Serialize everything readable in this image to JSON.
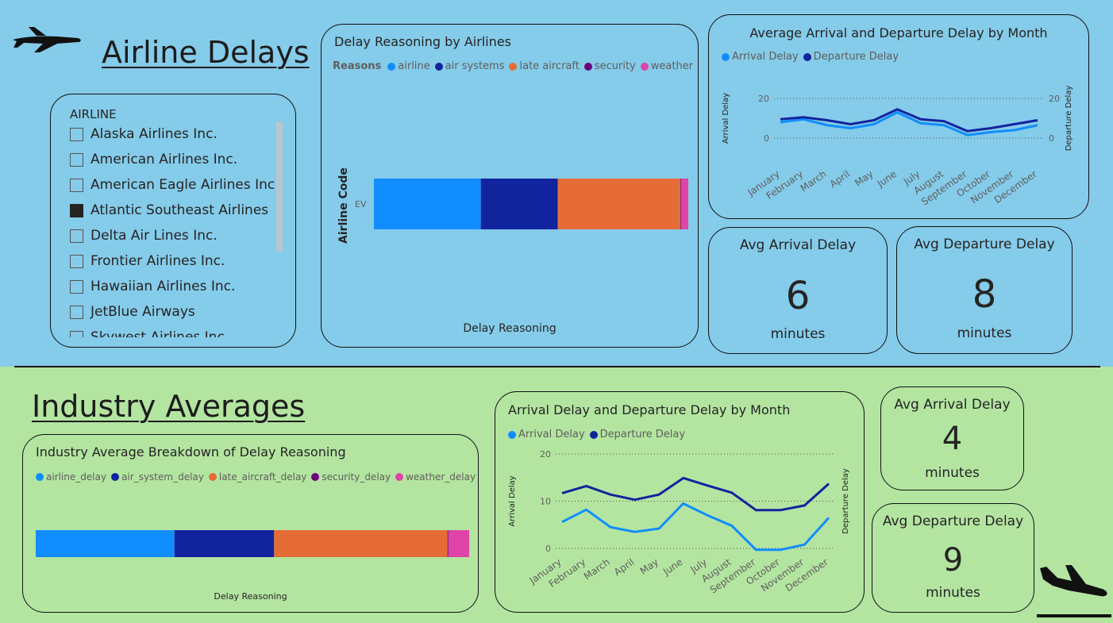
{
  "top_section": {
    "title": "Airline Delays",
    "slicer": {
      "header": "AIRLINE",
      "items": [
        {
          "label": "Alaska Airlines Inc.",
          "checked": false
        },
        {
          "label": "American Airlines Inc.",
          "checked": false
        },
        {
          "label": "American Eagle Airlines Inc.",
          "checked": false
        },
        {
          "label": "Atlantic Southeast Airlines",
          "checked": true
        },
        {
          "label": "Delta Air Lines Inc.",
          "checked": false
        },
        {
          "label": "Frontier Airlines Inc.",
          "checked": false
        },
        {
          "label": "Hawaiian Airlines Inc.",
          "checked": false
        },
        {
          "label": "JetBlue Airways",
          "checked": false
        },
        {
          "label": "Skywest Airlines Inc.",
          "checked": false
        }
      ]
    },
    "reason_chart": {
      "title": "Delay Reasoning by Airlines",
      "legend_title": "Reasons",
      "legend": [
        {
          "name": "airline",
          "color": "#118dff"
        },
        {
          "name": "air systems",
          "color": "#12239e"
        },
        {
          "name": "late aircraft",
          "color": "#e66c37"
        },
        {
          "name": "security",
          "color": "#6b007b"
        },
        {
          "name": "weather",
          "color": "#e044a7"
        }
      ],
      "y_axis_title": "Airline Code",
      "x_axis_title": "Delay Reasoning",
      "category": "EV"
    },
    "month_chart": {
      "title": "Average Arrival and Departure Delay by Month",
      "legend": [
        {
          "name": "Arrival Delay",
          "color": "#118dff"
        },
        {
          "name": "Departure Delay",
          "color": "#12239e"
        }
      ],
      "y_left_title": "Arrival Delay",
      "y_right_title": "Departure Delay",
      "ticks": [
        "0",
        "20"
      ]
    },
    "kpi_arrival": {
      "title": "Avg Arrival Delay",
      "value": "6",
      "unit": "minutes"
    },
    "kpi_departure": {
      "title": "Avg Departure Delay",
      "value": "8",
      "unit": "minutes"
    }
  },
  "bottom_section": {
    "title": "Industry Averages",
    "breakdown_chart": {
      "title": "Industry Average Breakdown of Delay Reasoning",
      "legend": [
        {
          "name": "airline_delay",
          "color": "#118dff"
        },
        {
          "name": "air_system_delay",
          "color": "#12239e"
        },
        {
          "name": "late_aircraft_delay",
          "color": "#e66c37"
        },
        {
          "name": "security_delay",
          "color": "#6b007b"
        },
        {
          "name": "weather_delay",
          "color": "#e044a7"
        }
      ],
      "x_axis_title": "Delay Reasoning"
    },
    "month_chart": {
      "title": "Arrival Delay and Departure Delay by Month",
      "legend": [
        {
          "name": "Arrival Delay",
          "color": "#118dff"
        },
        {
          "name": "Departure Delay",
          "color": "#12239e"
        }
      ],
      "y_left_title": "Arrival Delay",
      "y_right_title": "Departure Delay",
      "ticks": [
        "0",
        "10",
        "20"
      ]
    },
    "kpi_arrival": {
      "title": "Avg Arrival Delay",
      "value": "4",
      "unit": "minutes"
    },
    "kpi_departure": {
      "title": "Avg Departure Delay",
      "value": "9",
      "unit": "minutes"
    }
  },
  "icons": [
    "airplane-icon",
    "airplane-landing-icon"
  ],
  "chart_data": [
    {
      "type": "bar",
      "orientation": "horizontal-stacked",
      "title": "Delay Reasoning by Airlines",
      "categories": [
        "EV"
      ],
      "series": [
        {
          "name": "airline",
          "values": [
            34
          ]
        },
        {
          "name": "air systems",
          "values": [
            24.5
          ]
        },
        {
          "name": "late aircraft",
          "values": [
            39
          ]
        },
        {
          "name": "security",
          "values": [
            0.2
          ]
        },
        {
          "name": "weather",
          "values": [
            2.3
          ]
        }
      ],
      "xlabel": "Delay Reasoning",
      "ylabel": "Airline Code"
    },
    {
      "type": "line",
      "title": "Average Arrival and Departure Delay by Month",
      "categories": [
        "January",
        "February",
        "March",
        "April",
        "May",
        "June",
        "July",
        "August",
        "September",
        "October",
        "November",
        "December"
      ],
      "series": [
        {
          "name": "Arrival Delay",
          "values": [
            8,
            9.5,
            6.5,
            5,
            7,
            13,
            7.5,
            6.5,
            1.5,
            3,
            4,
            6.5
          ]
        },
        {
          "name": "Departure Delay",
          "values": [
            9.5,
            10.5,
            9,
            7,
            9,
            14.5,
            9.5,
            8.5,
            3.5,
            5,
            7,
            9
          ]
        }
      ],
      "ylabel": "Arrival Delay",
      "y2label": "Departure Delay",
      "ylim": [
        -2,
        22
      ]
    },
    {
      "type": "bar",
      "orientation": "horizontal-stacked",
      "title": "Industry Average Breakdown of Delay Reasoning",
      "categories": [
        ""
      ],
      "series": [
        {
          "name": "airline_delay",
          "values": [
            32
          ]
        },
        {
          "name": "air_system_delay",
          "values": [
            23
          ]
        },
        {
          "name": "late_aircraft_delay",
          "values": [
            40
          ]
        },
        {
          "name": "security_delay",
          "values": [
            0.2
          ]
        },
        {
          "name": "weather_delay",
          "values": [
            4.8
          ]
        }
      ],
      "xlabel": "Delay Reasoning"
    },
    {
      "type": "line",
      "title": "Arrival Delay and Departure Delay by Month",
      "categories": [
        "January",
        "February",
        "March",
        "April",
        "May",
        "June",
        "July",
        "August",
        "September",
        "October",
        "November",
        "December"
      ],
      "series": [
        {
          "name": "Arrival Delay",
          "values": [
            5.6,
            8.2,
            4.5,
            3.5,
            4.2,
            9.5,
            7,
            4.8,
            -0.3,
            -0.3,
            0.8,
            6.5
          ]
        },
        {
          "name": "Departure Delay",
          "values": [
            11.7,
            13.2,
            11.4,
            10.3,
            11.4,
            14.9,
            13.3,
            11.8,
            8.1,
            8.1,
            9.1,
            13.7
          ]
        }
      ],
      "ylabel": "Arrival Delay",
      "y2label": "Departure Delay",
      "ylim": [
        0,
        20
      ]
    }
  ]
}
